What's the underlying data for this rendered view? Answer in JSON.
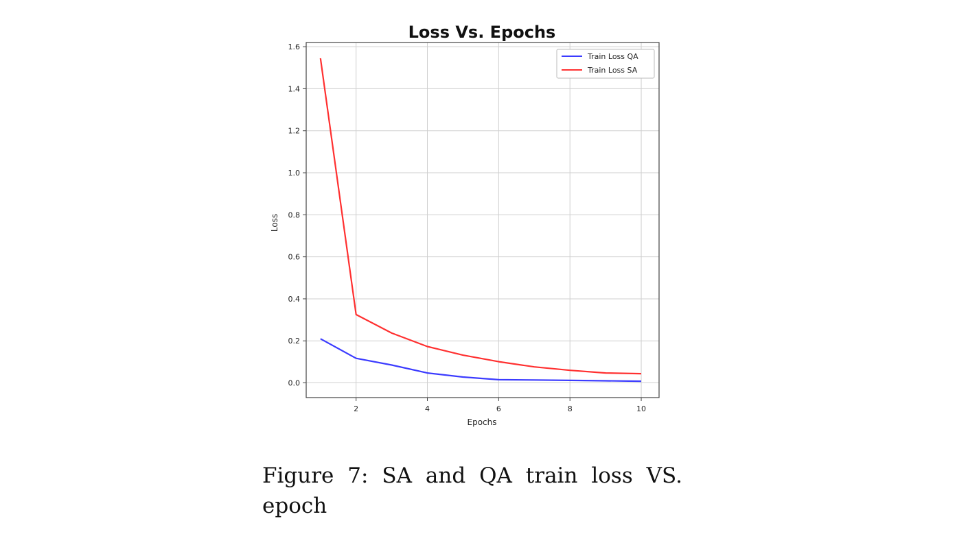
{
  "chart_data": {
    "type": "line",
    "title": "Loss Vs. Epochs",
    "xlabel": "Epochs",
    "ylabel": "Loss",
    "xlim": [
      0.6,
      10.5
    ],
    "ylim": [
      -0.07,
      1.62
    ],
    "xticks": [
      2,
      4,
      6,
      8,
      10
    ],
    "xtick_labels": [
      "2",
      "4",
      "6",
      "8",
      "10"
    ],
    "yticks": [
      0.0,
      0.2,
      0.4,
      0.6,
      0.8,
      1.0,
      1.2,
      1.4,
      1.6
    ],
    "ytick_labels": [
      "0.0",
      "0.2",
      "0.4",
      "0.6",
      "0.8",
      "1.0",
      "1.2",
      "1.4",
      "1.6"
    ],
    "grid": true,
    "legend_position": "top-right",
    "x": [
      1,
      2,
      3,
      4,
      5,
      6,
      7,
      8,
      9,
      10
    ],
    "series": [
      {
        "name": "Train Loss QA",
        "color": "#3b3bff",
        "values": [
          0.21,
          0.117,
          0.085,
          0.047,
          0.028,
          0.015,
          0.014,
          0.012,
          0.01,
          0.008
        ]
      },
      {
        "name": "Train Loss SA",
        "color": "#ff3030",
        "values": [
          1.545,
          0.325,
          0.237,
          0.173,
          0.132,
          0.101,
          0.076,
          0.06,
          0.047,
          0.044
        ]
      }
    ]
  },
  "caption": {
    "line1": "Figure 7:  SA and QA train loss VS.",
    "line2": "epoch"
  }
}
